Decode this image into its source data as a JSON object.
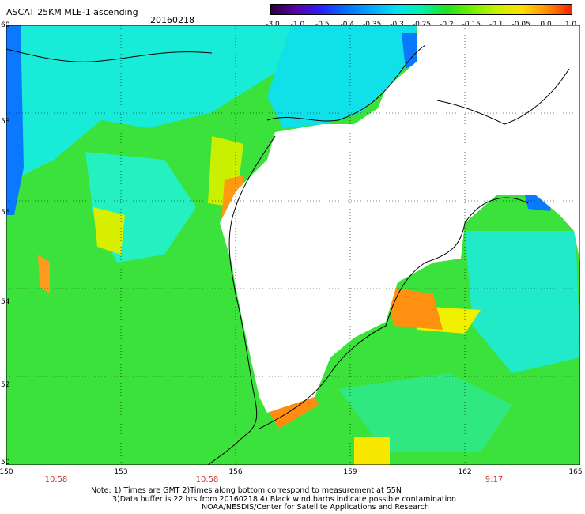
{
  "header": {
    "title": "ASCAT 25KM MLE-1 ascending",
    "date": "20160218"
  },
  "colorbar": {
    "labels": [
      "-3.0",
      "-1.0",
      "-0.5",
      "-0.4",
      "-0.35",
      "-0.3",
      "-0.25",
      "-0.2",
      "-0.15",
      "-0.1",
      "-0.05",
      "0.0",
      "1.0"
    ],
    "colors": [
      "#2a0038",
      "#5a00a8",
      "#2a20ff",
      "#0070ff",
      "#00a8ff",
      "#00e0f0",
      "#00f0b0",
      "#20e020",
      "#70f000",
      "#c8f000",
      "#ffe000",
      "#ff9000",
      "#ff2000"
    ]
  },
  "map": {
    "lat_labels": [
      "60",
      "58",
      "56",
      "54",
      "52",
      "50"
    ],
    "lon_labels": [
      "150",
      "153",
      "156",
      "159",
      "162",
      "165"
    ],
    "lat_range": [
      50,
      60
    ],
    "lon_range": [
      150,
      165
    ],
    "gridlines": true
  },
  "times": [
    {
      "label": "10:58",
      "lon": 151
    },
    {
      "label": "10:58",
      "lon": 155.3
    },
    {
      "label": "9:17",
      "lon": 162.4
    }
  ],
  "notes": [
    "Note: 1) Times are GMT 2)Times along bottom correspond to measurement at 55N",
    "3)Data buffer is 22 hrs from 20160218 4) Black wind barbs indicate possible contamination",
    "NOAA/NESDIS/Center for Satellite Applications and Research"
  ]
}
